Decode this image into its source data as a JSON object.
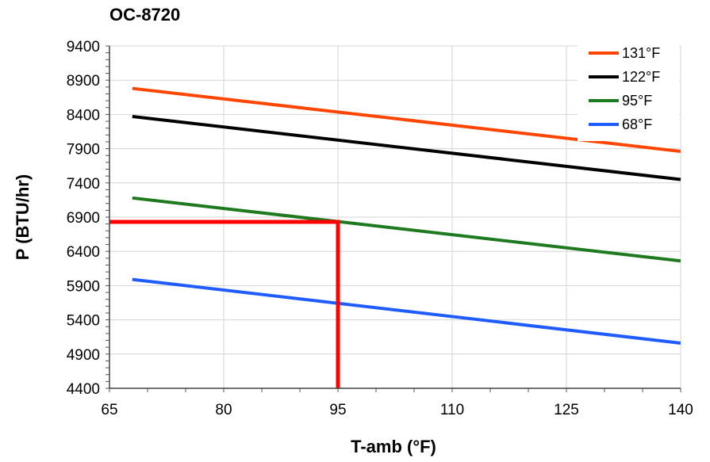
{
  "chart_data": {
    "type": "line",
    "title": "OC-8720",
    "xlabel": "T-amb (°F)",
    "ylabel": "P (BTU/hr)",
    "xlim": [
      65,
      140
    ],
    "ylim": [
      4400,
      9400
    ],
    "x_ticks": [
      "65",
      "80",
      "95",
      "110",
      "125",
      "140"
    ],
    "y_ticks": [
      "4400",
      "4900",
      "5400",
      "5900",
      "6400",
      "6900",
      "7400",
      "7900",
      "8400",
      "8900",
      "9400"
    ],
    "grid": true,
    "legend_position": "top-right",
    "series": [
      {
        "name": "131°F",
        "color": "#ff4500",
        "x": [
          68,
          140
        ],
        "y": [
          8780,
          7860
        ]
      },
      {
        "name": "122°F",
        "color": "#000000",
        "x": [
          68,
          140
        ],
        "y": [
          8370,
          7450
        ]
      },
      {
        "name": "95°F",
        "color": "#1e7a1e",
        "x": [
          68,
          140
        ],
        "y": [
          7180,
          6260
        ]
      },
      {
        "name": "68°F",
        "color": "#1f5cff",
        "x": [
          68,
          140
        ],
        "y": [
          5990,
          5060
        ]
      }
    ],
    "annotation": {
      "color": "#ff0000",
      "x": 95,
      "y": 6830
    }
  }
}
